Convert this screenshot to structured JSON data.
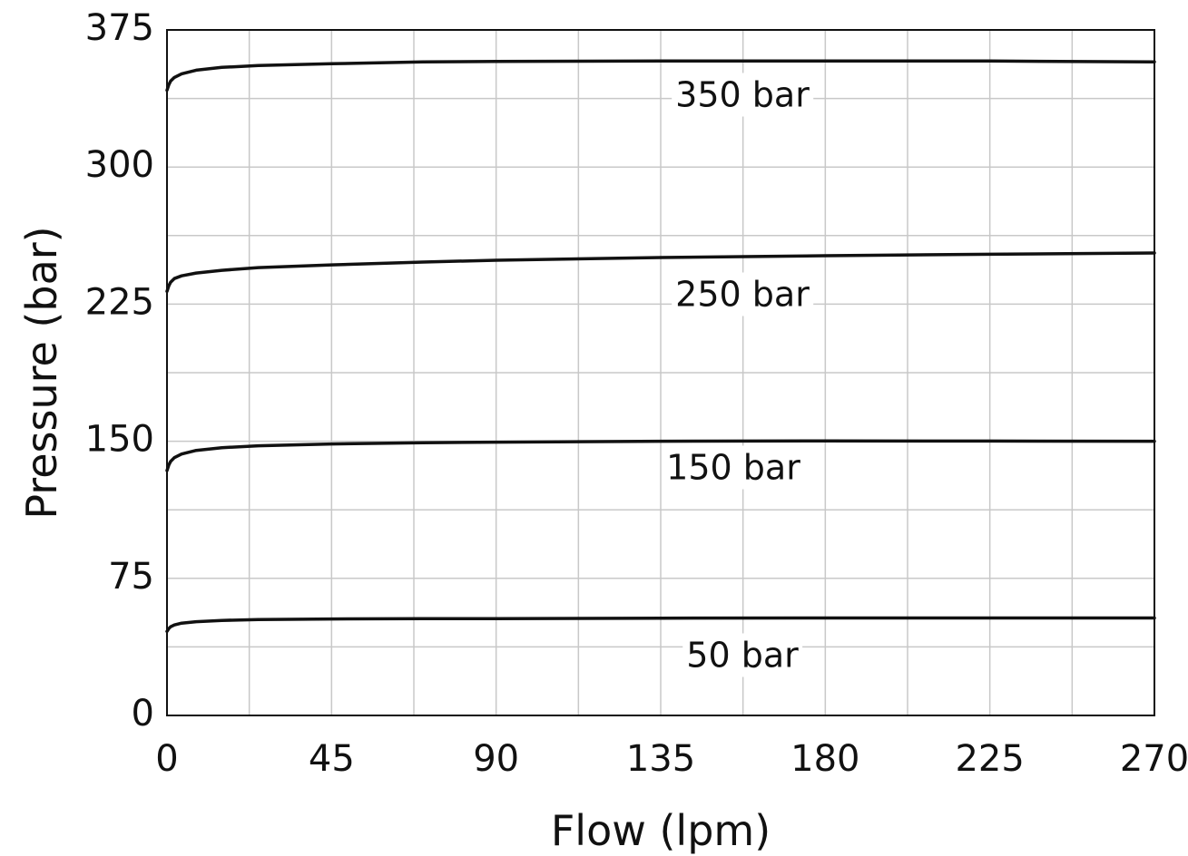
{
  "chart_data": {
    "type": "line",
    "xlabel": "Flow (lpm)",
    "ylabel": "Pressure (bar)",
    "xlim": [
      0,
      270
    ],
    "ylim": [
      0,
      375
    ],
    "xticks": [
      "0",
      "45",
      "90",
      "135",
      "180",
      "225",
      "270"
    ],
    "yticks": [
      "0",
      "75",
      "150",
      "225",
      "300",
      "375"
    ],
    "grid": true,
    "x": [
      0,
      0.5,
      1,
      2,
      4,
      8,
      15,
      25,
      45,
      70,
      90,
      135,
      180,
      225,
      270
    ],
    "series": [
      {
        "name": "350 bar",
        "values": [
          342,
          345,
          347,
          349,
          351,
          353,
          354.5,
          355.5,
          356.5,
          357.5,
          357.8,
          358,
          358,
          358,
          357.5
        ]
      },
      {
        "name": "250 bar",
        "values": [
          232,
          235,
          237,
          239,
          240.5,
          242,
          243.5,
          245,
          246.5,
          248,
          249,
          250.5,
          251.5,
          252.3,
          253
        ]
      },
      {
        "name": "150 bar",
        "values": [
          134,
          137,
          139,
          141,
          143,
          145,
          146.5,
          147.5,
          148.5,
          149.2,
          149.5,
          150,
          150.2,
          150.1,
          150
        ]
      },
      {
        "name": "50 bar",
        "values": [
          46,
          47.5,
          48.5,
          49.5,
          50.5,
          51.3,
          52,
          52.5,
          52.8,
          53,
          53,
          53.2,
          53.3,
          53.3,
          53.3
        ]
      }
    ],
    "line_color": "#111111",
    "grid_color": "#c8c8c8"
  }
}
